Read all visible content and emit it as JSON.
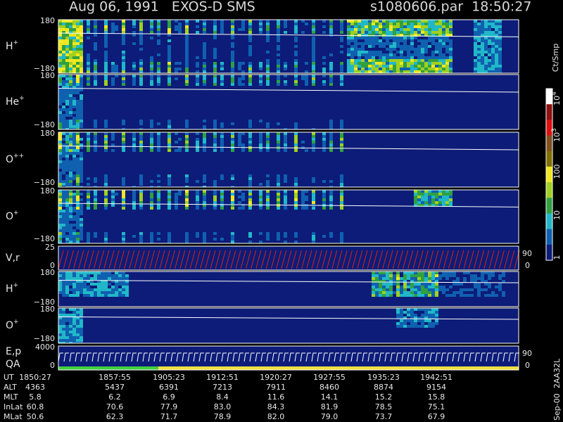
{
  "header": {
    "title": "Aug 06, 1991   EXOS-D SMS",
    "file": "s1080606.par  18:50:27"
  },
  "panels": [
    {
      "label": "H",
      "sup": "+",
      "top": "180",
      "bottom": "−180"
    },
    {
      "label": "He",
      "sup": "+",
      "top": "180",
      "bottom": "−180"
    },
    {
      "label": "O",
      "sup": "++",
      "top": "180",
      "bottom": "−180"
    },
    {
      "label": "O",
      "sup": "+",
      "top": "180",
      "bottom": "−180"
    },
    {
      "label": "V,r",
      "top": "25",
      "bottom": "0",
      "right_top": "90",
      "right_bottom": "0"
    },
    {
      "label": "H",
      "sup": "+",
      "top": "180",
      "bottom": "−180"
    },
    {
      "label": "O",
      "sup": "+",
      "top": "180",
      "bottom": "−180"
    },
    {
      "label": "E,p",
      "label2": "QA",
      "top": "4000",
      "bottom": "0",
      "right_top": "90",
      "right_bottom": "0"
    }
  ],
  "colorbar": {
    "unit": "Ct/Smp",
    "labels": [
      {
        "base": "10",
        "sup": "4"
      },
      {
        "base": "10",
        "sup": "3"
      },
      {
        "base": "100"
      },
      {
        "base": "10"
      },
      {
        "base": "1"
      }
    ]
  },
  "table": {
    "rows": [
      [
        "UT",
        "1850:27",
        "1857:55",
        "1905:23",
        "1912:51",
        "1920:27",
        "1927:55",
        "1935:23",
        "1942:51"
      ],
      [
        "ALT",
        "4363",
        "5437",
        "6391",
        "7213",
        "7911",
        "8460",
        "8874",
        "9154"
      ],
      [
        "MLT",
        "5.8",
        "6.2",
        "6.9",
        "8.4",
        "11.6",
        "14.1",
        "15.2",
        "15.8"
      ],
      [
        "InLat",
        "60.8",
        "70.6",
        "77.9",
        "83.0",
        "84.3",
        "81.9",
        "78.5",
        "75.1"
      ],
      [
        "MLat",
        "50.6",
        "62.3",
        "71.7",
        "78.9",
        "82.0",
        "79.0",
        "73.7",
        "67.9"
      ]
    ]
  },
  "footer": "Sep-00  2AA32L"
}
